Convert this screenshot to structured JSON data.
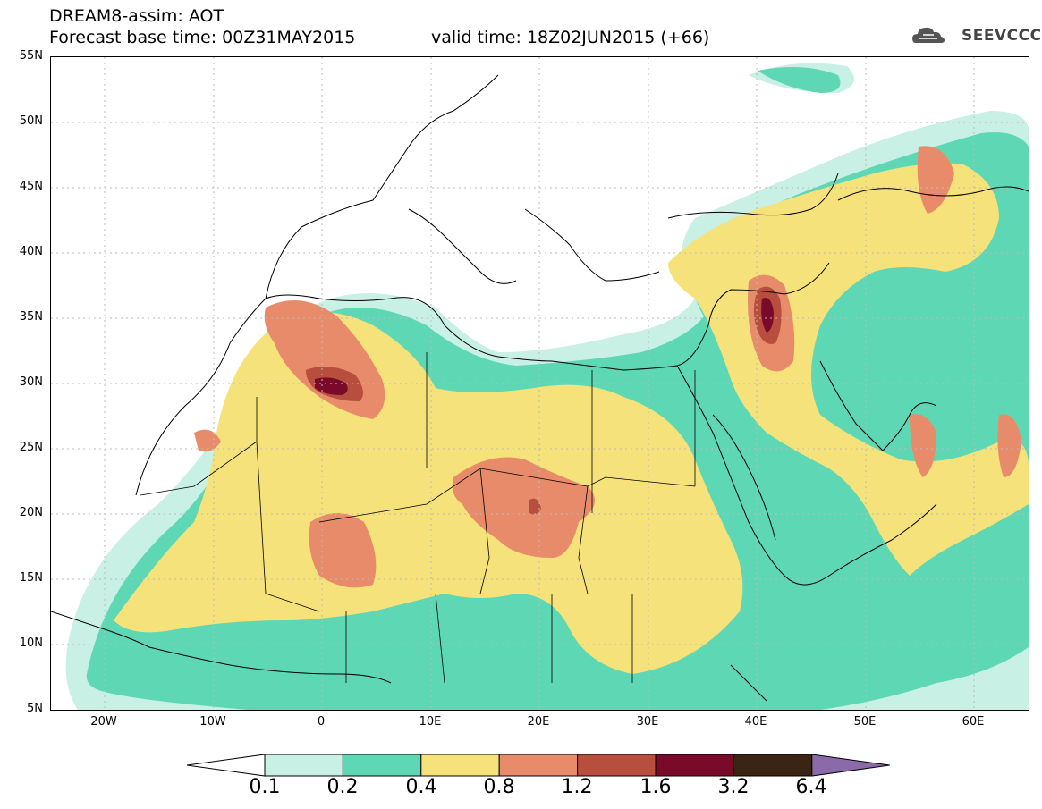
{
  "header": {
    "title_line1": "DREAM8-assim: AOT",
    "title_line2": "Forecast base time: 00Z31MAY2015",
    "valid_time": "valid time: 18Z02JUN2015 (+66)",
    "logo_text": "SEEVCCC",
    "logo_icon": "cloud-icon"
  },
  "axes": {
    "y_ticks": [
      "55N",
      "50N",
      "45N",
      "40N",
      "35N",
      "30N",
      "25N",
      "20N",
      "15N",
      "10N",
      "5N"
    ],
    "x_ticks": [
      "20W",
      "10W",
      "0",
      "10E",
      "20E",
      "30E",
      "40E",
      "50E",
      "60E"
    ]
  },
  "colorbar": {
    "labels": [
      "0.1",
      "0.2",
      "0.4",
      "0.8",
      "1.2",
      "1.6",
      "3.2",
      "6.4"
    ],
    "colors": [
      "#ffffff",
      "#c8f0e4",
      "#5ed8b4",
      "#f5e27a",
      "#e78b6a",
      "#b84e3e",
      "#7a0a2a",
      "#3a2414",
      "#8a6aa8"
    ]
  },
  "map": {
    "variable": "AOT",
    "domain_lon": [
      -25,
      65
    ],
    "domain_lat": [
      5,
      55
    ]
  }
}
